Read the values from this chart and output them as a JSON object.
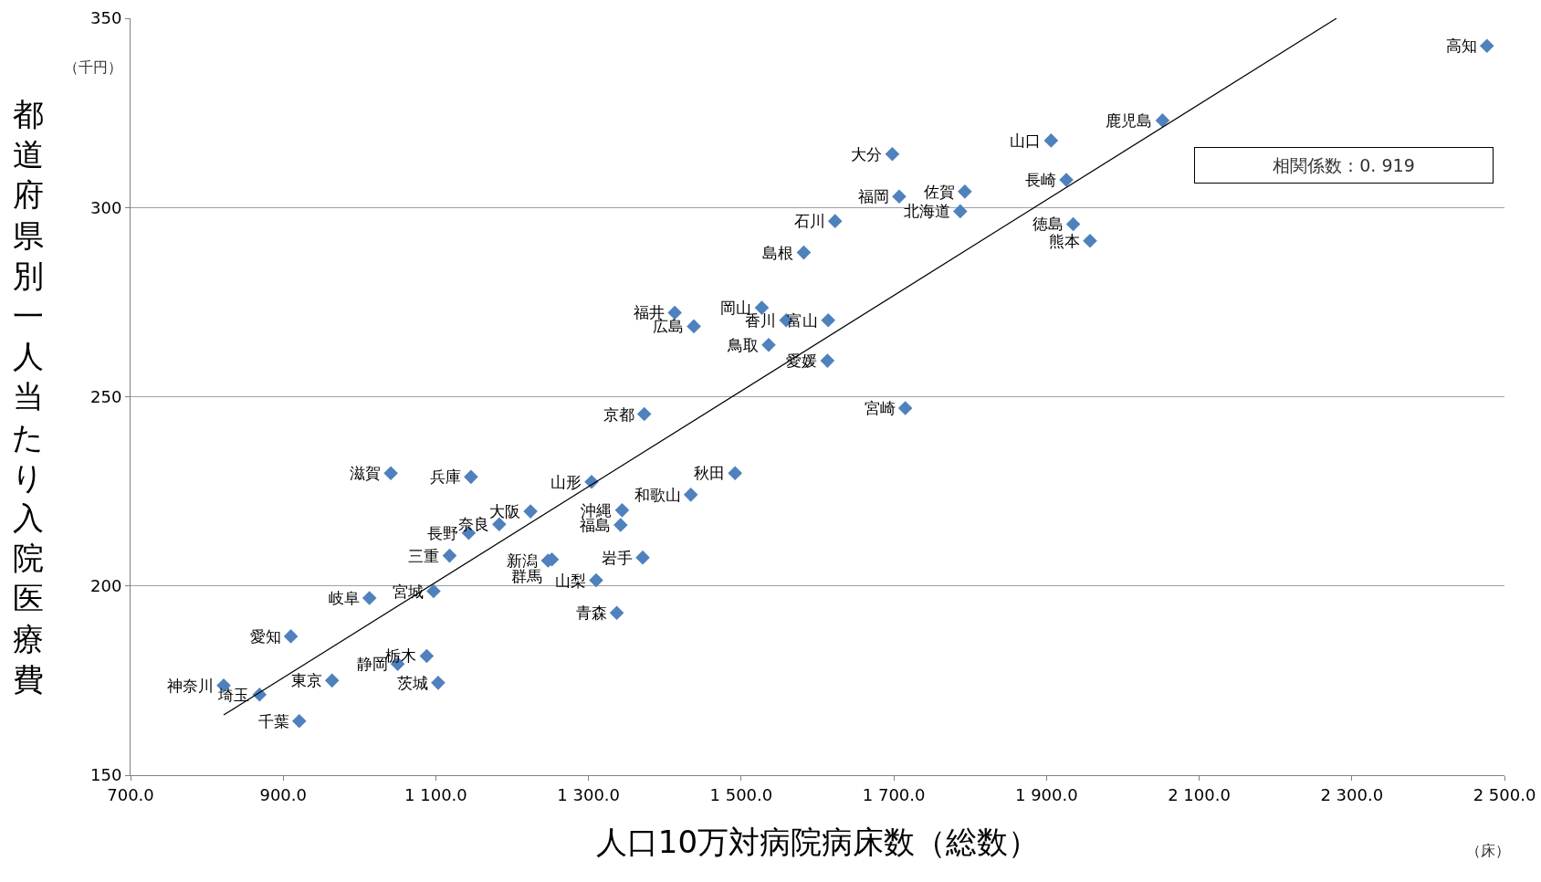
{
  "chart_data": {
    "type": "scatter",
    "xlabel": "人口10万対病院病床数（総数）",
    "ylabel": "都道府県別一人当たり入院医療費",
    "xlim": [
      700,
      2500
    ],
    "xticks": [
      {
        "value": 700,
        "label": "700.0"
      },
      {
        "value": 900,
        "label": "900.0"
      },
      {
        "value": 1100,
        "label": "1 100.0"
      },
      {
        "value": 1300,
        "label": "1 300.0"
      },
      {
        "value": 1500,
        "label": "1 500.0"
      },
      {
        "value": 1700,
        "label": "1 700.0"
      },
      {
        "value": 1900,
        "label": "1 900.0"
      },
      {
        "value": 2100,
        "label": "2 100.0"
      },
      {
        "value": 2300,
        "label": "2 300.0"
      },
      {
        "value": 2500,
        "label": "2 500.0"
      }
    ],
    "ylim": [
      150,
      350
    ],
    "yticks": [
      150,
      200,
      250,
      300,
      350
    ],
    "grid": "y",
    "series": [
      {
        "marker": "diamond",
        "color": "#4f81bd",
        "x": [
          2477,
          2052,
          1906,
          1926,
          1698,
          1707,
          1793,
          1787,
          1623,
          1935,
          1957,
          1582,
          1413,
          1438,
          1527,
          1559,
          1614,
          1536,
          1613,
          1715,
          1373,
          1492,
          1434,
          1304,
          1041,
          1146,
          1224,
          1344,
          1342,
          1183,
          1143,
          1118,
          1247,
          1252,
          1371,
          1310,
          1097,
          1013,
          1337,
          910,
          1088,
          1050,
          964,
          1103,
          822,
          869,
          921
        ],
        "values": [
          342.7,
          323.0,
          317.7,
          307.3,
          314.1,
          302.9,
          304.2,
          299.0,
          296.4,
          295.6,
          291.2,
          288.1,
          272.2,
          268.6,
          273.5,
          270.2,
          270.2,
          263.7,
          259.5,
          247.0,
          245.4,
          229.8,
          224.1,
          227.5,
          229.8,
          228.8,
          219.7,
          220.0,
          216.1,
          216.3,
          214.0,
          208.0,
          206.7,
          207.0,
          207.5,
          201.5,
          198.6,
          196.8,
          192.9,
          186.7,
          181.5,
          179.4,
          175.0,
          174.4,
          173.7,
          171.3,
          164.3
        ]
      },
      {
        "type": "line",
        "color": "#000000",
        "x": [
          822,
          2280
        ],
        "values": [
          165.9,
          350
        ]
      }
    ],
    "annotations": [
      "相関係数：0. 919",
      "（千円）",
      "（床）",
      {
        "text": "高知",
        "x": 2477,
        "y": 342.7
      },
      {
        "text": "鹿児島",
        "x": 2052,
        "y": 323.0
      },
      {
        "text": "山口",
        "x": 1906,
        "y": 317.7
      },
      {
        "text": "長崎",
        "x": 1926,
        "y": 307.3
      },
      {
        "text": "大分",
        "x": 1698,
        "y": 314.1
      },
      {
        "text": "福岡",
        "x": 1707,
        "y": 302.9
      },
      {
        "text": "佐賀",
        "x": 1793,
        "y": 304.2
      },
      {
        "text": "北海道",
        "x": 1787,
        "y": 299.0
      },
      {
        "text": "石川",
        "x": 1623,
        "y": 296.4
      },
      {
        "text": "徳島",
        "x": 1935,
        "y": 295.6
      },
      {
        "text": "熊本",
        "x": 1957,
        "y": 291.2
      },
      {
        "text": "島根",
        "x": 1582,
        "y": 288.1
      },
      {
        "text": "福井",
        "x": 1413,
        "y": 272.2
      },
      {
        "text": "広島",
        "x": 1438,
        "y": 268.6
      },
      {
        "text": "岡山",
        "x": 1527,
        "y": 273.5
      },
      {
        "text": "香川",
        "x": 1559,
        "y": 270.2
      },
      {
        "text": "富山",
        "x": 1614,
        "y": 270.2
      },
      {
        "text": "鳥取",
        "x": 1536,
        "y": 263.7
      },
      {
        "text": "愛媛",
        "x": 1613,
        "y": 259.5
      },
      {
        "text": "宮崎",
        "x": 1715,
        "y": 247.0
      },
      {
        "text": "京都",
        "x": 1373,
        "y": 245.4
      },
      {
        "text": "秋田",
        "x": 1492,
        "y": 229.8
      },
      {
        "text": "和歌山",
        "x": 1434,
        "y": 224.1
      },
      {
        "text": "山形",
        "x": 1304,
        "y": 227.5
      },
      {
        "text": "滋賀",
        "x": 1041,
        "y": 229.8
      },
      {
        "text": "兵庫",
        "x": 1146,
        "y": 228.8
      },
      {
        "text": "大阪",
        "x": 1224,
        "y": 219.7
      },
      {
        "text": "沖縄",
        "x": 1344,
        "y": 220.0
      },
      {
        "text": "福島",
        "x": 1342,
        "y": 216.1
      },
      {
        "text": "奈良",
        "x": 1183,
        "y": 216.3
      },
      {
        "text": "長野",
        "x": 1143,
        "y": 214.0
      },
      {
        "text": "三重",
        "x": 1118,
        "y": 208.0
      },
      {
        "text": "新潟",
        "x": 1247,
        "y": 206.7
      },
      {
        "text": "群馬",
        "x": 1252,
        "y": 207.0
      },
      {
        "text": "岩手",
        "x": 1371,
        "y": 207.5
      },
      {
        "text": "山梨",
        "x": 1310,
        "y": 201.5
      },
      {
        "text": "宮城",
        "x": 1097,
        "y": 198.6
      },
      {
        "text": "岐阜",
        "x": 1013,
        "y": 196.8
      },
      {
        "text": "青森",
        "x": 1337,
        "y": 192.9
      },
      {
        "text": "愛知",
        "x": 910,
        "y": 186.7
      },
      {
        "text": "栃木",
        "x": 1088,
        "y": 181.5
      },
      {
        "text": "静岡",
        "x": 1050,
        "y": 179.4
      },
      {
        "text": "東京",
        "x": 964,
        "y": 175.0
      },
      {
        "text": "茨城",
        "x": 1103,
        "y": 174.4
      },
      {
        "text": "神奈川",
        "x": 822,
        "y": 173.7
      },
      {
        "text": "埼玉",
        "x": 869,
        "y": 171.3
      },
      {
        "text": "千葉",
        "x": 921,
        "y": 164.3
      }
    ]
  }
}
